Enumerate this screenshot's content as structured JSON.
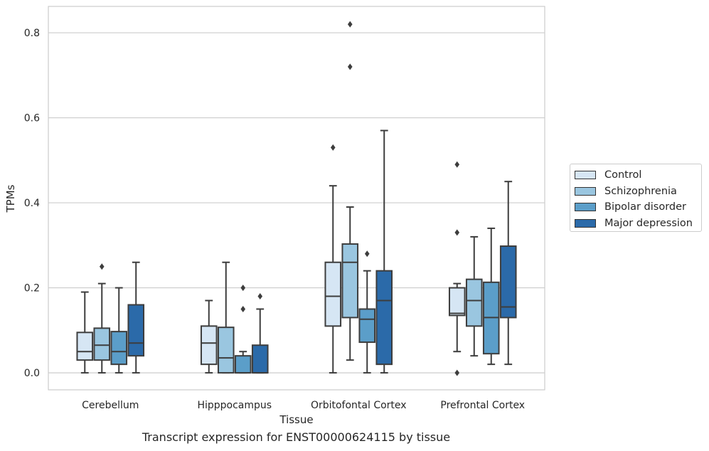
{
  "chart_data": {
    "type": "box",
    "title": "",
    "caption": "Transcript expression for ENST00000624115 by tissue",
    "xlabel": "Tissue",
    "ylabel": "TPMs",
    "ylim": [
      -0.04,
      0.862
    ],
    "yticks": [
      0.0,
      0.2,
      0.4,
      0.6,
      0.8
    ],
    "ytick_labels": [
      "0.0",
      "0.2",
      "0.4",
      "0.6",
      "0.8"
    ],
    "grid": "horizontal",
    "legend_position": "right",
    "categories": [
      "Cerebellum",
      "Hipppocampus",
      "Orbitofontal Cortex",
      "Prefrontal Cortex"
    ],
    "series": [
      {
        "name": "Control",
        "color": "#d6e6f4",
        "boxes": [
          {
            "whislo": 0.0,
            "q1": 0.03,
            "med": 0.05,
            "q3": 0.095,
            "whishi": 0.19,
            "fliers": []
          },
          {
            "whislo": 0.0,
            "q1": 0.02,
            "med": 0.07,
            "q3": 0.11,
            "whishi": 0.17,
            "fliers": []
          },
          {
            "whislo": 0.0,
            "q1": 0.11,
            "med": 0.18,
            "q3": 0.26,
            "whishi": 0.44,
            "fliers": [
              0.53
            ]
          },
          {
            "whislo": 0.05,
            "q1": 0.135,
            "med": 0.14,
            "q3": 0.2,
            "whishi": 0.21,
            "fliers": [
              0.49,
              0.33,
              0.0
            ]
          }
        ]
      },
      {
        "name": "Schizophrenia",
        "color": "#9ac6e0",
        "boxes": [
          {
            "whislo": 0.0,
            "q1": 0.03,
            "med": 0.065,
            "q3": 0.105,
            "whishi": 0.21,
            "fliers": [
              0.25
            ]
          },
          {
            "whislo": 0.0,
            "q1": 0.0,
            "med": 0.035,
            "q3": 0.107,
            "whishi": 0.26,
            "fliers": []
          },
          {
            "whislo": 0.03,
            "q1": 0.13,
            "med": 0.26,
            "q3": 0.303,
            "whishi": 0.39,
            "fliers": [
              0.82,
              0.72
            ]
          },
          {
            "whislo": 0.04,
            "q1": 0.11,
            "med": 0.17,
            "q3": 0.22,
            "whishi": 0.32,
            "fliers": []
          }
        ]
      },
      {
        "name": "Bipolar disorder",
        "color": "#5b9ec9",
        "boxes": [
          {
            "whislo": 0.0,
            "q1": 0.02,
            "med": 0.05,
            "q3": 0.097,
            "whishi": 0.2,
            "fliers": []
          },
          {
            "whislo": 0.0,
            "q1": 0.0,
            "med": 0.0,
            "q3": 0.04,
            "whishi": 0.05,
            "fliers": [
              0.2,
              0.15
            ]
          },
          {
            "whislo": 0.0,
            "q1": 0.072,
            "med": 0.126,
            "q3": 0.15,
            "whishi": 0.24,
            "fliers": [
              0.28
            ]
          },
          {
            "whislo": 0.02,
            "q1": 0.045,
            "med": 0.13,
            "q3": 0.213,
            "whishi": 0.34,
            "fliers": []
          }
        ]
      },
      {
        "name": "Major depression",
        "color": "#2b6aa9",
        "boxes": [
          {
            "whislo": 0.0,
            "q1": 0.04,
            "med": 0.07,
            "q3": 0.16,
            "whishi": 0.26,
            "fliers": []
          },
          {
            "whislo": 0.0,
            "q1": 0.0,
            "med": 0.0,
            "q3": 0.065,
            "whishi": 0.15,
            "fliers": [
              0.18
            ]
          },
          {
            "whislo": 0.0,
            "q1": 0.02,
            "med": 0.17,
            "q3": 0.24,
            "whishi": 0.57,
            "fliers": []
          },
          {
            "whislo": 0.02,
            "q1": 0.13,
            "med": 0.155,
            "q3": 0.298,
            "whishi": 0.45,
            "fliers": []
          }
        ]
      }
    ]
  }
}
